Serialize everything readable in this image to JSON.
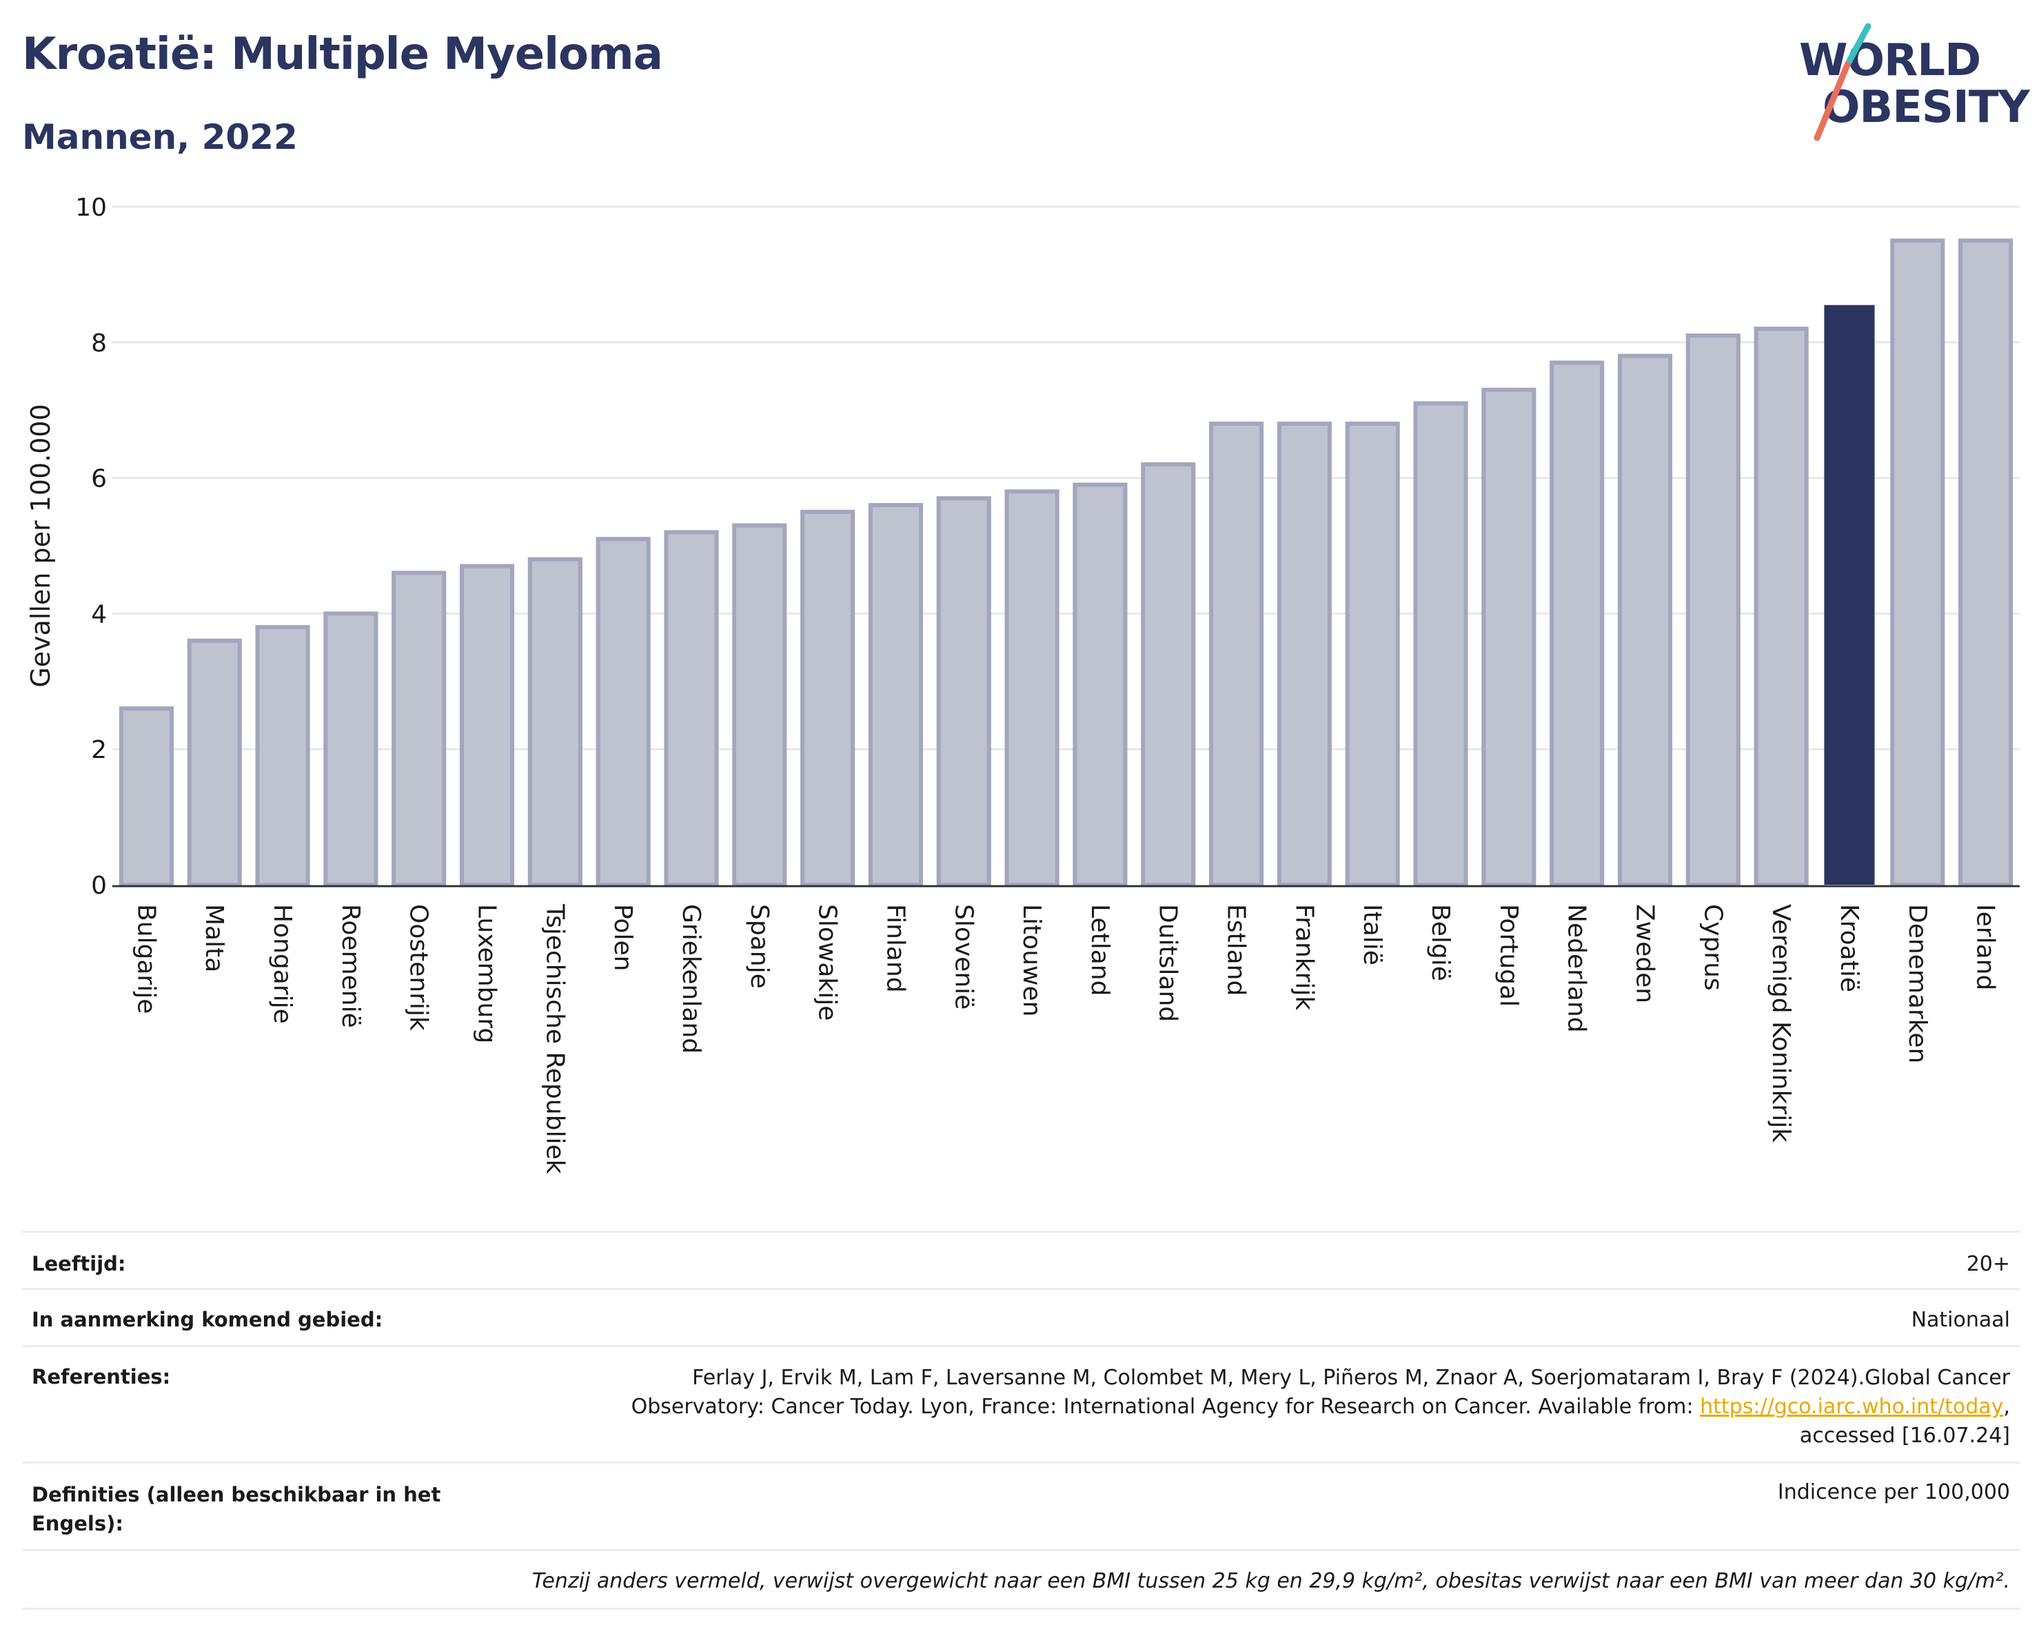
{
  "header": {
    "title": "Kroatië: Multiple Myeloma",
    "subtitle": "Mannen, 2022"
  },
  "logo": {
    "line1": "WORLD",
    "line2": "OBESITY"
  },
  "colors": {
    "highlight": "#2b3560",
    "bar_fill": "#bfc2cf",
    "bar_stroke": "#a2a7bd",
    "grid": "#e6e8ee",
    "text_dark": "#2b3560",
    "link": "#e8a900"
  },
  "chart_data": {
    "type": "bar",
    "ylabel": "Gevallen per 100.000",
    "ylim": [
      0,
      10
    ],
    "yticks": [
      0,
      2,
      4,
      6,
      8,
      10
    ],
    "grid": true,
    "highlight": "Kroatië",
    "categories": [
      "Bulgarije",
      "Malta",
      "Hongarije",
      "Roemenië",
      "Oostenrijk",
      "Luxemburg",
      "Tsjechische Republiek",
      "Polen",
      "Griekenland",
      "Spanje",
      "Slowakije",
      "Finland",
      "Slovenië",
      "Litouwen",
      "Letland",
      "Duitsland",
      "Estland",
      "Frankrijk",
      "Italië",
      "België",
      "Portugal",
      "Nederland",
      "Zweden",
      "Cyprus",
      "Verenigd Koninkrijk",
      "Kroatië",
      "Denemarken",
      "Ierland"
    ],
    "values": [
      2.6,
      3.6,
      3.8,
      4.0,
      4.6,
      4.7,
      4.8,
      5.1,
      5.2,
      5.3,
      5.5,
      5.6,
      5.7,
      5.8,
      5.9,
      6.2,
      6.8,
      6.8,
      6.8,
      7.1,
      7.3,
      7.7,
      7.8,
      8.1,
      8.2,
      8.55,
      9.5,
      9.5
    ]
  },
  "info": {
    "age_label": "Leeftijd:",
    "age_value": "20+",
    "area_label": "In aanmerking komend gebied:",
    "area_value": "Nationaal",
    "refs_label": "Referenties:",
    "refs_line1": "Ferlay J, Ervik M, Lam F, Laversanne M, Colombet M, Mery L, Piñeros M, Znaor A, Soerjomataram I, Bray F (2024).Global Cancer",
    "refs_line2": "Observatory: Cancer Today. Lyon, France: International Agency for Research on Cancer. Available from: ",
    "refs_link": "https://gco.iarc.who.int/today",
    "refs_comma": ",",
    "refs_line3": "accessed [16.07.24]",
    "defs_label_1": "Definities (alleen beschikbaar in het",
    "defs_label_2": "Engels):",
    "defs_value": "Indicence per 100,000",
    "note": "Tenzij anders vermeld, verwijst overgewicht naar een BMI tussen 25 kg en 29,9 kg/m², obesitas verwijst naar een BMI van meer dan 30 kg/m²."
  }
}
